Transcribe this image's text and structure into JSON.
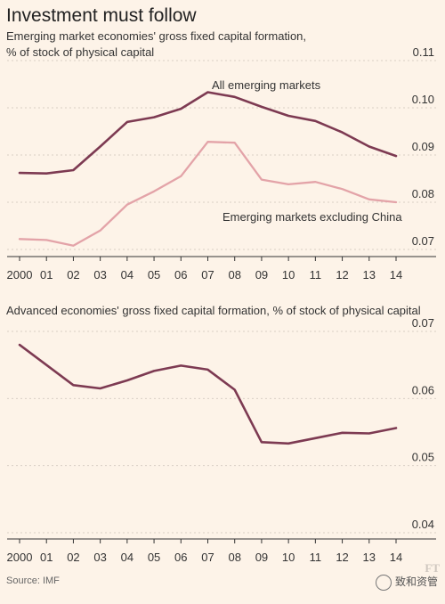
{
  "header": {
    "title": "Investment must follow",
    "subtitle_line1": "Emerging market economies' gross fixed capital formation,",
    "subtitle_line2": "% of stock of physical capital"
  },
  "footer": {
    "source": "Source: IMF",
    "watermark": "致和资管",
    "ft_mark": "FT"
  },
  "colors": {
    "emerging": "#7d3a52",
    "ex_china": "#e3a3a8",
    "advanced": "#7d3a52"
  },
  "chart_data": [
    {
      "type": "line",
      "title": "Emerging market economies' gross fixed capital formation, % of stock of physical capital",
      "categories": [
        "2000",
        "01",
        "02",
        "03",
        "04",
        "05",
        "06",
        "07",
        "08",
        "09",
        "10",
        "11",
        "12",
        "13",
        "14"
      ],
      "ylim": [
        0.07,
        0.11
      ],
      "yticks": [
        "0.11",
        "0.10",
        "0.09",
        "0.08",
        "0.07"
      ],
      "ytick_values": [
        0.11,
        0.1,
        0.09,
        0.08,
        0.07
      ],
      "series": [
        {
          "name": "All emerging markets",
          "values": [
            0.0862,
            0.0861,
            0.0868,
            0.0918,
            0.097,
            0.098,
            0.0998,
            0.1033,
            0.1023,
            0.1002,
            0.0983,
            0.0972,
            0.0948,
            0.0918,
            0.0898
          ]
        },
        {
          "name": "Emerging markets excluding China",
          "values": [
            0.0722,
            0.072,
            0.0708,
            0.074,
            0.0795,
            0.0823,
            0.0855,
            0.0928,
            0.0926,
            0.0848,
            0.0838,
            0.0843,
            0.0828,
            0.0806,
            0.08
          ]
        }
      ]
    },
    {
      "type": "line",
      "title": "Advanced economies' gross fixed capital formation, % of stock of physical capital",
      "categories": [
        "2000",
        "01",
        "02",
        "03",
        "04",
        "05",
        "06",
        "07",
        "08",
        "09",
        "10",
        "11",
        "12",
        "13",
        "14"
      ],
      "ylim": [
        0.04,
        0.07
      ],
      "yticks": [
        "0.07",
        "0.06",
        "0.05",
        "0.04"
      ],
      "ytick_values": [
        0.07,
        0.06,
        0.05,
        0.04
      ],
      "series": [
        {
          "values": [
            0.068,
            0.065,
            0.062,
            0.0615,
            0.0627,
            0.0641,
            0.0649,
            0.0643,
            0.0613,
            0.0535,
            0.0533,
            0.0541,
            0.0549,
            0.0548,
            0.0556
          ]
        }
      ]
    }
  ]
}
